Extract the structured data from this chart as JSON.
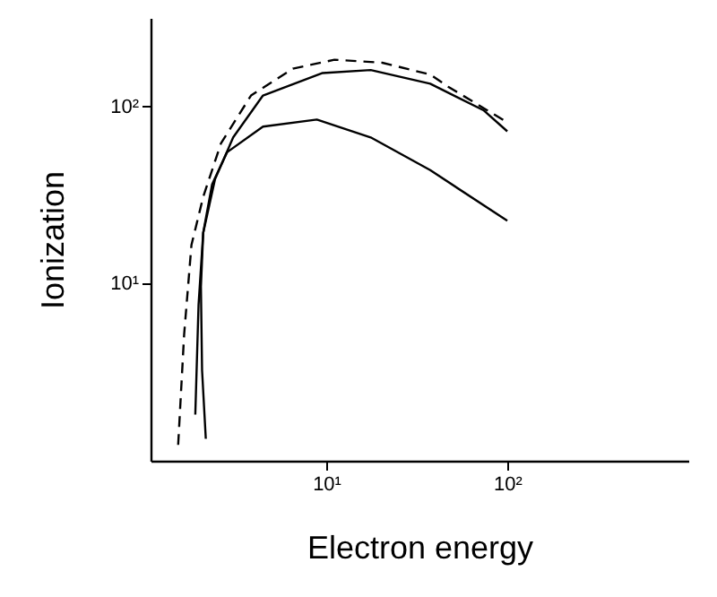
{
  "chart_data": {
    "type": "line",
    "xlabel": "Electron energy",
    "ylabel": "Ionization",
    "log": "xy",
    "grid": false,
    "marker": "none",
    "xlim": [
      1.07,
      1000
    ],
    "ylim": [
      1,
      315
    ],
    "xticks": [
      {
        "value": 10,
        "label": "10¹"
      },
      {
        "value": 100,
        "label": "10²"
      }
    ],
    "yticks": [
      {
        "value": 10,
        "label": "10¹"
      },
      {
        "value": 100,
        "label": "10²"
      }
    ],
    "series": [
      {
        "color": "#000000",
        "line_style": "solid",
        "x": [
          2.16,
          2.06,
          2.03,
          2.09,
          2.34,
          2.83,
          4.47,
          8.87,
          17.6,
          37.5,
          100
        ],
        "values": [
          1.33,
          3.24,
          9.6,
          19.3,
          36.2,
          55,
          76.7,
          84.1,
          66.7,
          43.6,
          22.6
        ]
      },
      {
        "color": "#000000",
        "line_style": "solid",
        "x": [
          1.89,
          1.97,
          2.09,
          2.43,
          3.06,
          4.47,
          9.55,
          17.6,
          37.5,
          74.3,
          100
        ],
        "values": [
          1.82,
          7.6,
          19.3,
          38.8,
          66.7,
          115,
          154,
          160,
          134,
          94.6,
          72.2
        ]
      },
      {
        "color": "#000000",
        "line_style": "dashed",
        "x": [
          1.52,
          1.64,
          1.8,
          2.09,
          2.62,
          3.84,
          6.53,
          11.1,
          20.4,
          37.5,
          47.1,
          100
        ],
        "values": [
          1.23,
          5.16,
          16.5,
          30.8,
          61.8,
          115,
          163,
          183,
          176,
          151,
          129,
          81.1
        ]
      }
    ]
  }
}
